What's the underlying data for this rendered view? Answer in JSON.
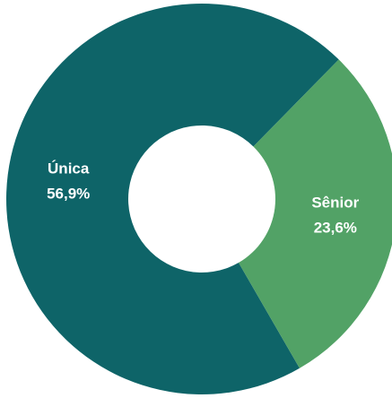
{
  "chart_data": {
    "type": "donut",
    "categories": [
      "Única",
      "Sênior"
    ],
    "values": [
      56.9,
      23.6
    ],
    "value_labels": [
      "56,9%",
      "23,6%"
    ],
    "colors": [
      "#0e6468",
      "#52a266"
    ]
  }
}
